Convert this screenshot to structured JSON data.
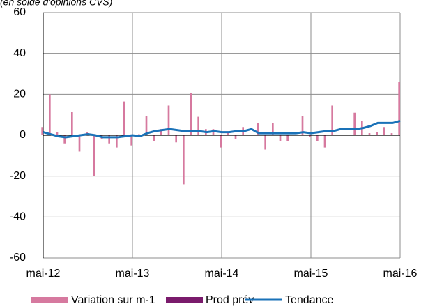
{
  "chart_data": {
    "type": "bar-line",
    "subtitle": "(en solde d'opinions CVS)",
    "categories": [
      "mai-12",
      null,
      null,
      null,
      null,
      null,
      null,
      null,
      null,
      null,
      null,
      null,
      "mai-13",
      null,
      null,
      null,
      null,
      null,
      null,
      null,
      null,
      null,
      null,
      null,
      "mai-14",
      null,
      null,
      null,
      null,
      null,
      null,
      null,
      null,
      null,
      null,
      null,
      "mai-15",
      null,
      null,
      null,
      null,
      null,
      null,
      null,
      null,
      null,
      null,
      null,
      "mai-16"
    ],
    "series": [
      {
        "name": "Variation sur m-1",
        "kind": "bar",
        "color": "#d6799f",
        "values": [
          4,
          20,
          1.5,
          -4,
          11.5,
          -8,
          1.5,
          -20,
          -2,
          -4,
          -6,
          16.5,
          -5,
          0.5,
          9.5,
          -3,
          3,
          14.5,
          -3.5,
          -24,
          20.5,
          9,
          3,
          3,
          -6,
          1.5,
          -2,
          4,
          0,
          6,
          -7,
          6,
          -3,
          -3,
          0,
          9.5,
          -1,
          -3,
          -6,
          14.5,
          0,
          0,
          11,
          7,
          1,
          1.5,
          4,
          1,
          26
        ]
      },
      {
        "name": "Prod prév",
        "kind": "bar",
        "color": "#7a1b6c",
        "values": [
          null,
          null,
          null,
          null,
          null,
          null,
          null,
          null,
          null,
          null,
          null,
          null,
          null,
          null,
          null,
          null,
          null,
          null,
          null,
          null,
          null,
          null,
          null,
          null,
          null,
          null,
          null,
          null,
          null,
          null,
          null,
          null,
          null,
          null,
          null,
          null,
          null,
          null,
          null,
          null,
          null,
          null,
          null,
          null,
          null,
          null,
          null,
          null,
          null
        ]
      },
      {
        "name": "Tendance",
        "kind": "line",
        "color": "#1a72b8",
        "values": [
          1.5,
          0.5,
          -0.5,
          -1,
          -0.5,
          0,
          0.5,
          0,
          -1,
          -1,
          -1,
          -0.5,
          0,
          -0.5,
          1,
          2,
          2.5,
          3,
          2.5,
          2,
          2,
          2,
          1.5,
          2,
          1.5,
          1.5,
          2,
          2,
          3,
          1,
          1,
          1,
          1,
          1,
          1,
          1.5,
          1,
          1.5,
          2,
          2,
          3,
          3,
          3,
          3.5,
          4.5,
          6,
          6,
          6,
          7
        ]
      }
    ],
    "ylim": [
      -60,
      60
    ],
    "yticks": [
      -60,
      -40,
      -20,
      0,
      20,
      40,
      60
    ],
    "grid": true,
    "legend": "bottom"
  }
}
